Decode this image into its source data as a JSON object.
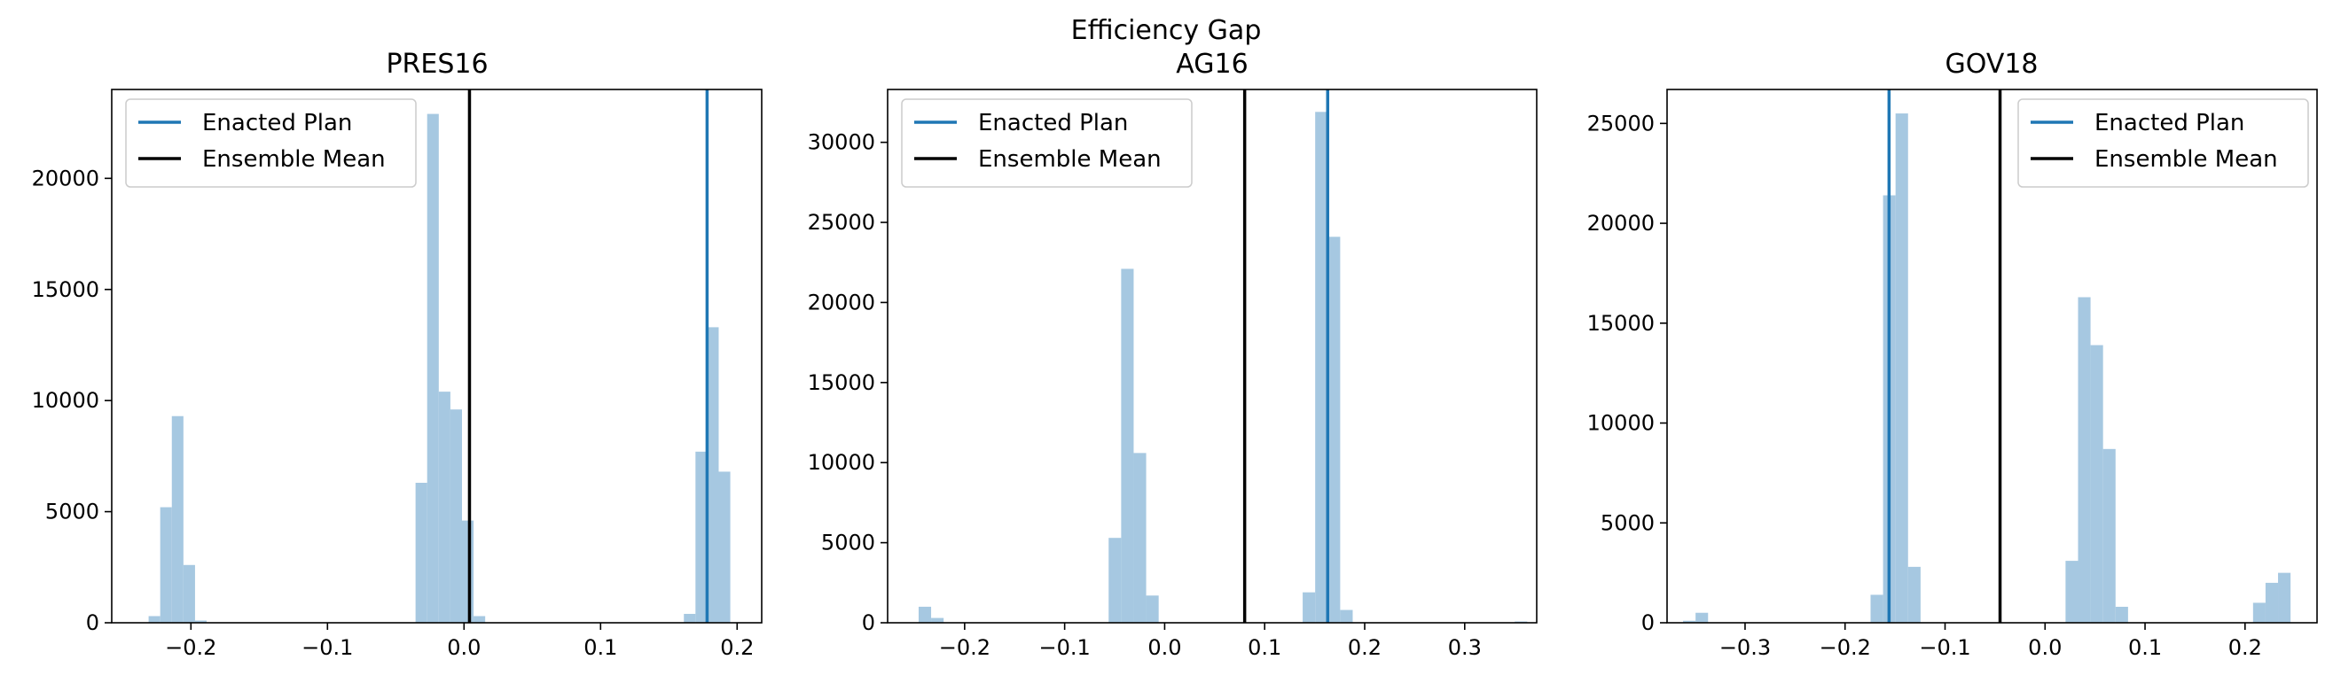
{
  "figure": {
    "suptitle": "Efficiency Gap"
  },
  "colors": {
    "hist": "#a6c8e1",
    "enacted": "#1f77b4",
    "mean": "#000000"
  },
  "chart_data": [
    {
      "type": "histogram",
      "title": "PRES16",
      "xlim": [
        -0.258,
        0.218
      ],
      "ylim": [
        0,
        24000
      ],
      "xticks": [
        -0.2,
        -0.1,
        0.0,
        0.1,
        0.2
      ],
      "xtick_labels": [
        "−0.2",
        "−0.1",
        "0.0",
        "0.1",
        "0.2"
      ],
      "yticks": [
        0,
        5000,
        10000,
        15000,
        20000
      ],
      "ytick_labels": [
        "0",
        "5000",
        "10000",
        "15000",
        "20000"
      ],
      "bin_width": 0.0085,
      "bins": [
        {
          "x0": -0.231,
          "count": 300
        },
        {
          "x0": -0.2225,
          "count": 5200
        },
        {
          "x0": -0.214,
          "count": 9300
        },
        {
          "x0": -0.2055,
          "count": 2600
        },
        {
          "x0": -0.197,
          "count": 100
        },
        {
          "x0": -0.0355,
          "count": 6300
        },
        {
          "x0": -0.027,
          "count": 22900
        },
        {
          "x0": -0.0185,
          "count": 10400
        },
        {
          "x0": -0.01,
          "count": 9600
        },
        {
          "x0": -0.0015,
          "count": 4600
        },
        {
          "x0": 0.007,
          "count": 300
        },
        {
          "x0": 0.161,
          "count": 400
        },
        {
          "x0": 0.1695,
          "count": 7700
        },
        {
          "x0": 0.178,
          "count": 13300
        },
        {
          "x0": 0.1865,
          "count": 6800
        }
      ],
      "enacted_plan": 0.178,
      "ensemble_mean": 0.004,
      "legend": {
        "entries": [
          "Enacted Plan",
          "Ensemble Mean"
        ],
        "loc": "upper-left"
      }
    },
    {
      "type": "histogram",
      "title": "AG16",
      "xlim": [
        -0.277,
        0.372
      ],
      "ylim": [
        0,
        33300
      ],
      "xticks": [
        -0.2,
        -0.1,
        0.0,
        0.1,
        0.2,
        0.3
      ],
      "xtick_labels": [
        "−0.2",
        "−0.1",
        "0.0",
        "0.1",
        "0.2",
        "0.3"
      ],
      "yticks": [
        0,
        5000,
        10000,
        15000,
        20000,
        25000,
        30000
      ],
      "ytick_labels": [
        "0",
        "5000",
        "10000",
        "15000",
        "20000",
        "25000",
        "30000"
      ],
      "bin_width": 0.0125,
      "bins": [
        {
          "x0": -0.246,
          "count": 1000
        },
        {
          "x0": -0.2335,
          "count": 300
        },
        {
          "x0": -0.056,
          "count": 5300
        },
        {
          "x0": -0.0435,
          "count": 22100
        },
        {
          "x0": -0.031,
          "count": 10600
        },
        {
          "x0": -0.0185,
          "count": 1700
        },
        {
          "x0": 0.138,
          "count": 1900
        },
        {
          "x0": 0.1505,
          "count": 31900
        },
        {
          "x0": 0.163,
          "count": 24100
        },
        {
          "x0": 0.1755,
          "count": 800
        },
        {
          "x0": 0.35,
          "count": 80
        }
      ],
      "enacted_plan": 0.163,
      "ensemble_mean": 0.08,
      "legend": {
        "entries": [
          "Enacted Plan",
          "Ensemble Mean"
        ],
        "loc": "upper-left"
      }
    },
    {
      "type": "histogram",
      "title": "GOV18",
      "xlim": [
        -0.378,
        0.272
      ],
      "ylim": [
        0,
        26700
      ],
      "xticks": [
        -0.3,
        -0.2,
        -0.1,
        0.0,
        0.1,
        0.2
      ],
      "xtick_labels": [
        "−0.3",
        "−0.2",
        "−0.1",
        "0.0",
        "0.1",
        "0.2"
      ],
      "yticks": [
        0,
        5000,
        10000,
        15000,
        20000,
        25000
      ],
      "ytick_labels": [
        "0",
        "5000",
        "10000",
        "15000",
        "20000",
        "25000"
      ],
      "bin_width": 0.0125,
      "bins": [
        {
          "x0": -0.362,
          "count": 100
        },
        {
          "x0": -0.3495,
          "count": 500
        },
        {
          "x0": -0.1745,
          "count": 1400
        },
        {
          "x0": -0.162,
          "count": 21400
        },
        {
          "x0": -0.1495,
          "count": 25500
        },
        {
          "x0": -0.137,
          "count": 2800
        },
        {
          "x0": 0.0205,
          "count": 3100
        },
        {
          "x0": 0.033,
          "count": 16300
        },
        {
          "x0": 0.0455,
          "count": 13900
        },
        {
          "x0": 0.058,
          "count": 8700
        },
        {
          "x0": 0.0705,
          "count": 800
        },
        {
          "x0": 0.208,
          "count": 1000
        },
        {
          "x0": 0.2205,
          "count": 2000
        },
        {
          "x0": 0.233,
          "count": 2500
        }
      ],
      "enacted_plan": -0.156,
      "ensemble_mean": -0.045,
      "legend": {
        "entries": [
          "Enacted Plan",
          "Ensemble Mean"
        ],
        "loc": "upper-right"
      }
    }
  ]
}
